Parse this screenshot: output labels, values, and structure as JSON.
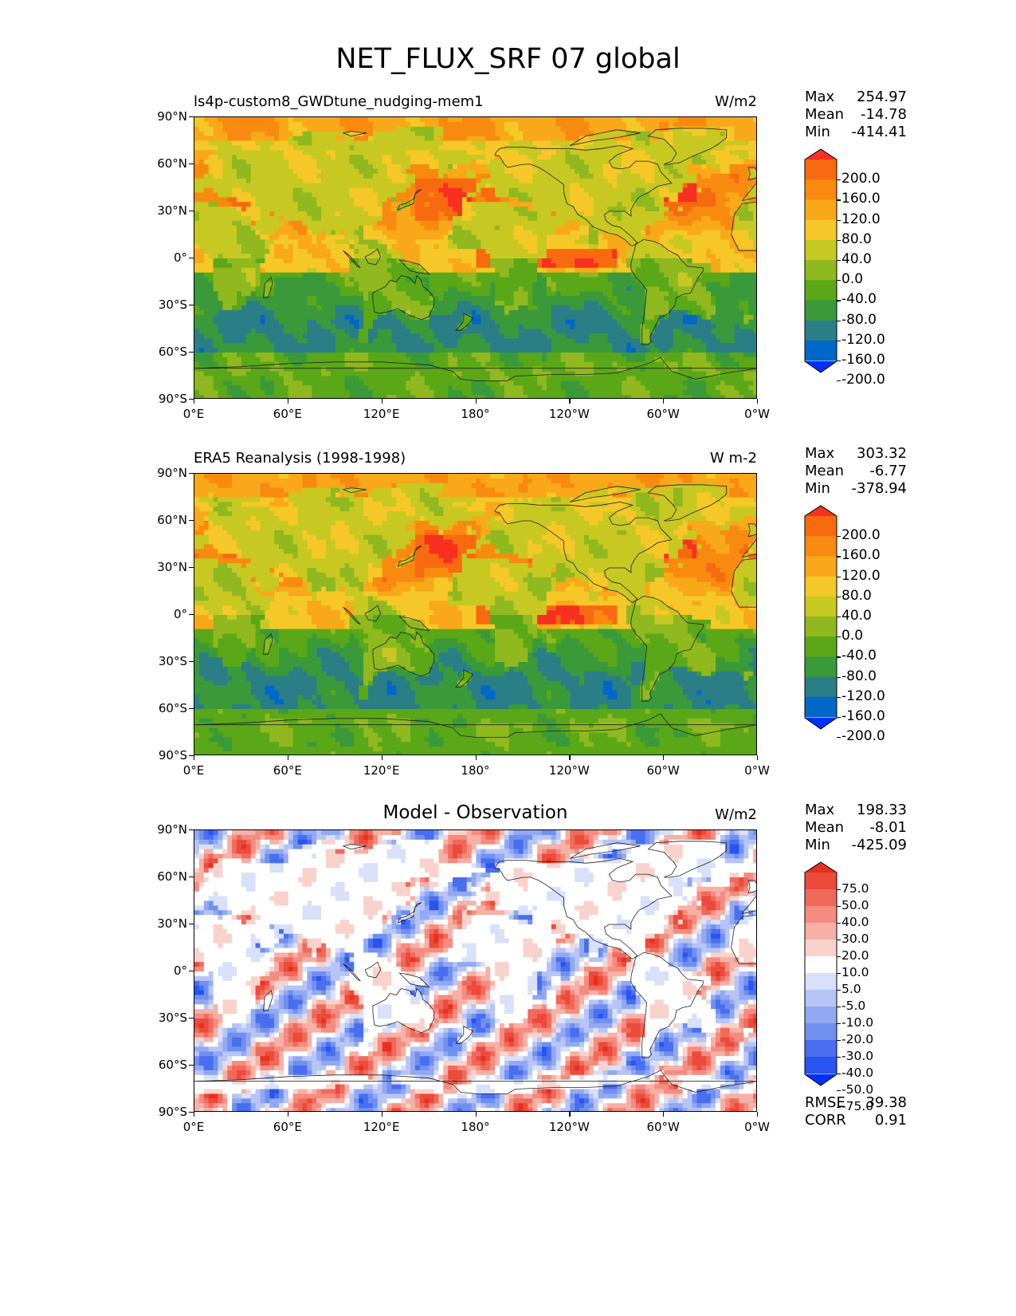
{
  "figure_title": "NET_FLUX_SRF 07 global",
  "axes": {
    "yticks": [
      "90°N",
      "60°N",
      "30°N",
      "0°",
      "30°S",
      "60°S",
      "90°S"
    ],
    "xticks": [
      "0°E",
      "60°E",
      "120°E",
      "180°",
      "120°W",
      "60°W",
      "0°W"
    ]
  },
  "colors": {
    "flux_levels": [
      "#0030ff",
      "#0068c8",
      "#2a7f86",
      "#3a9a3a",
      "#5aa818",
      "#90b81f",
      "#c8c822",
      "#f5c828",
      "#f8a818",
      "#f88a10",
      "#f86a10",
      "#f83020"
    ],
    "diff_levels": [
      "#0030ff",
      "#2854f0",
      "#4a6ef0",
      "#7090f0",
      "#92a8f2",
      "#b6c4f6",
      "#d8e0fa",
      "#ffffff",
      "#fad2cc",
      "#f6b0a6",
      "#f48c80",
      "#f06a5c",
      "#ec4a3a",
      "#e83020"
    ]
  },
  "panels": [
    {
      "id": "test",
      "title": "ls4p-custom8_GWDtune_nudging-mem1",
      "title_style": "left",
      "units": "W/m2",
      "stats": {
        "max_label": "Max",
        "max": "254.97",
        "mean_label": "Mean",
        "mean": "-14.78",
        "min_label": "Min",
        "min": "-414.41"
      },
      "colorbar": {
        "type": "flux",
        "labels": [
          "200.0",
          "160.0",
          "120.0",
          "80.0",
          "40.0",
          "0.0",
          "-40.0",
          "-80.0",
          "-120.0",
          "-160.0",
          "-200.0"
        ]
      },
      "field": "flux_model"
    },
    {
      "id": "reference",
      "title": "ERA5 Reanalysis (1998-1998)",
      "title_style": "left",
      "units": "W m-2",
      "stats": {
        "max_label": "Max",
        "max": "303.32",
        "mean_label": "Mean",
        "mean": "-6.77",
        "min_label": "Min",
        "min": "-378.94"
      },
      "colorbar": {
        "type": "flux",
        "labels": [
          "200.0",
          "160.0",
          "120.0",
          "80.0",
          "40.0",
          "0.0",
          "-40.0",
          "-80.0",
          "-120.0",
          "-160.0",
          "-200.0"
        ]
      },
      "field": "flux_obs"
    },
    {
      "id": "diff",
      "title": "Model - Observation",
      "title_style": "center",
      "units": "W/m2",
      "stats": {
        "max_label": "Max",
        "max": "198.33",
        "mean_label": "Mean",
        "mean": "-8.01",
        "min_label": "Min",
        "min": "-425.09"
      },
      "colorbar": {
        "type": "diff",
        "labels": [
          "75.0",
          "50.0",
          "40.0",
          "30.0",
          "20.0",
          "10.0",
          "5.0",
          "-5.0",
          "-10.0",
          "-20.0",
          "-30.0",
          "-40.0",
          "-50.0",
          "-75.0"
        ]
      },
      "field": "diff",
      "extra_stats": {
        "rmse_label": "RMSE",
        "rmse": "39.38",
        "corr_label": "CORR",
        "corr": "0.91"
      }
    }
  ]
}
